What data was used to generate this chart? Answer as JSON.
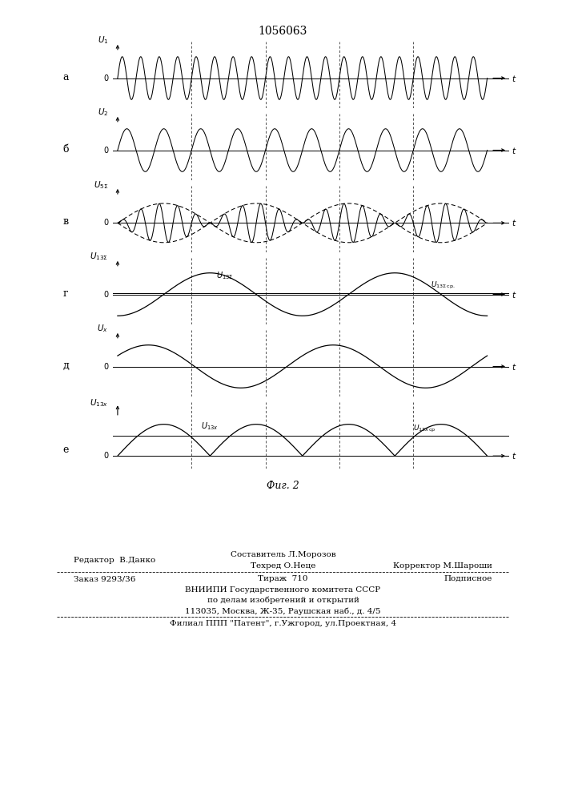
{
  "title": "1056063",
  "fig_label": "Фиг. 2",
  "background_color": "#ffffff",
  "panel_labels": [
    "а",
    "б",
    "в",
    "г",
    "д",
    "е"
  ],
  "y_label_a": "U₁",
  "y_label_b": "U₂",
  "y_label_v": "U₅Σ",
  "y_label_g": "U₁₃Σ",
  "y_label_d": "Uₓ",
  "y_label_e": "U₁₃ₓ",
  "annotation_g1": "U₁₃Σ",
  "annotation_g2": "U₁₃Σср.",
  "annotation_e1": "U₁₃ₓ",
  "annotation_e2": "U₁₃ₓср",
  "t_label": "t",
  "zero_label": "0",
  "editor": "Редактор  В.Данко",
  "composer": "Составитель Л.Морозов",
  "techred": "Техред О.Неце",
  "corrector": "Корректор М.Шароши",
  "order": "Заказ 9293/36",
  "tirazh": "Тираж  710",
  "podp": "Подписное",
  "vniip1": "ВНИИПИ Государственного комитета СССР",
  "vniip2": "по делам изобретений и открытий",
  "vniip3": "113035, Москва, Ж-35, Раушская наб., д. 4/5",
  "filial": "Филиал ППП \"Патент\", г.Ужгород, ул.Проектная, 4"
}
